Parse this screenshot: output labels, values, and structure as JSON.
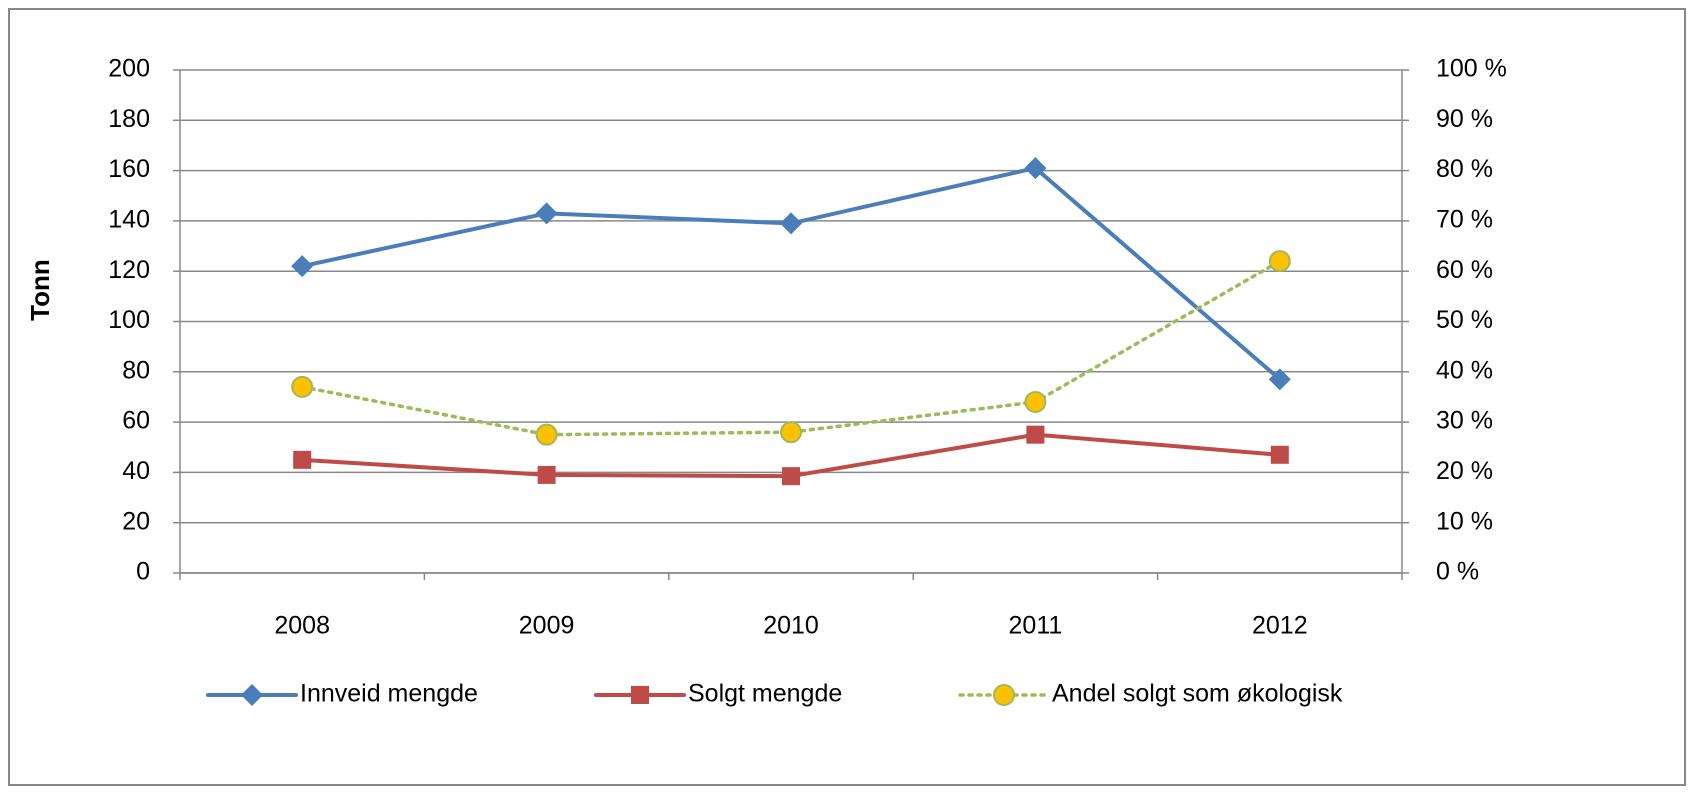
{
  "chart_data": {
    "type": "line",
    "y_label": "Tonn",
    "categories": [
      "2008",
      "2009",
      "2010",
      "2011",
      "2012"
    ],
    "series": [
      {
        "name": "Innveid mengde",
        "color": "#4a7ebb",
        "marker": "diamond",
        "values": [
          122,
          143,
          139,
          161,
          77
        ]
      },
      {
        "name": "Solgt mengde",
        "color": "#be4b48",
        "marker": "square",
        "values": [
          45,
          39,
          38.5,
          55,
          47
        ]
      },
      {
        "name": "Andel solgt som økologisk",
        "color": "#9bbb59",
        "marker": "circle",
        "marker_color": "#ffc000",
        "dash": "dotted",
        "axis": "y2",
        "values": [
          37,
          27.5,
          28,
          34,
          62
        ]
      }
    ],
    "ylim": [
      0,
      200
    ],
    "yticks": [
      0,
      20,
      40,
      60,
      80,
      100,
      120,
      140,
      160,
      180,
      200
    ],
    "y2lim": [
      0,
      100
    ],
    "y2ticks": [
      {
        "value": 0,
        "label": "0 %"
      },
      {
        "value": 10,
        "label": "10 %"
      },
      {
        "value": 20,
        "label": "20 %"
      },
      {
        "value": 30,
        "label": "30 %"
      },
      {
        "value": 40,
        "label": "40 %"
      },
      {
        "value": 50,
        "label": "50 %"
      },
      {
        "value": 60,
        "label": "60 %"
      },
      {
        "value": 70,
        "label": "70 %"
      },
      {
        "value": 80,
        "label": "80 %"
      },
      {
        "value": 90,
        "label": "90 %"
      },
      {
        "value": 100,
        "label": "100 %"
      }
    ],
    "grid": true,
    "legend": "bottom"
  }
}
